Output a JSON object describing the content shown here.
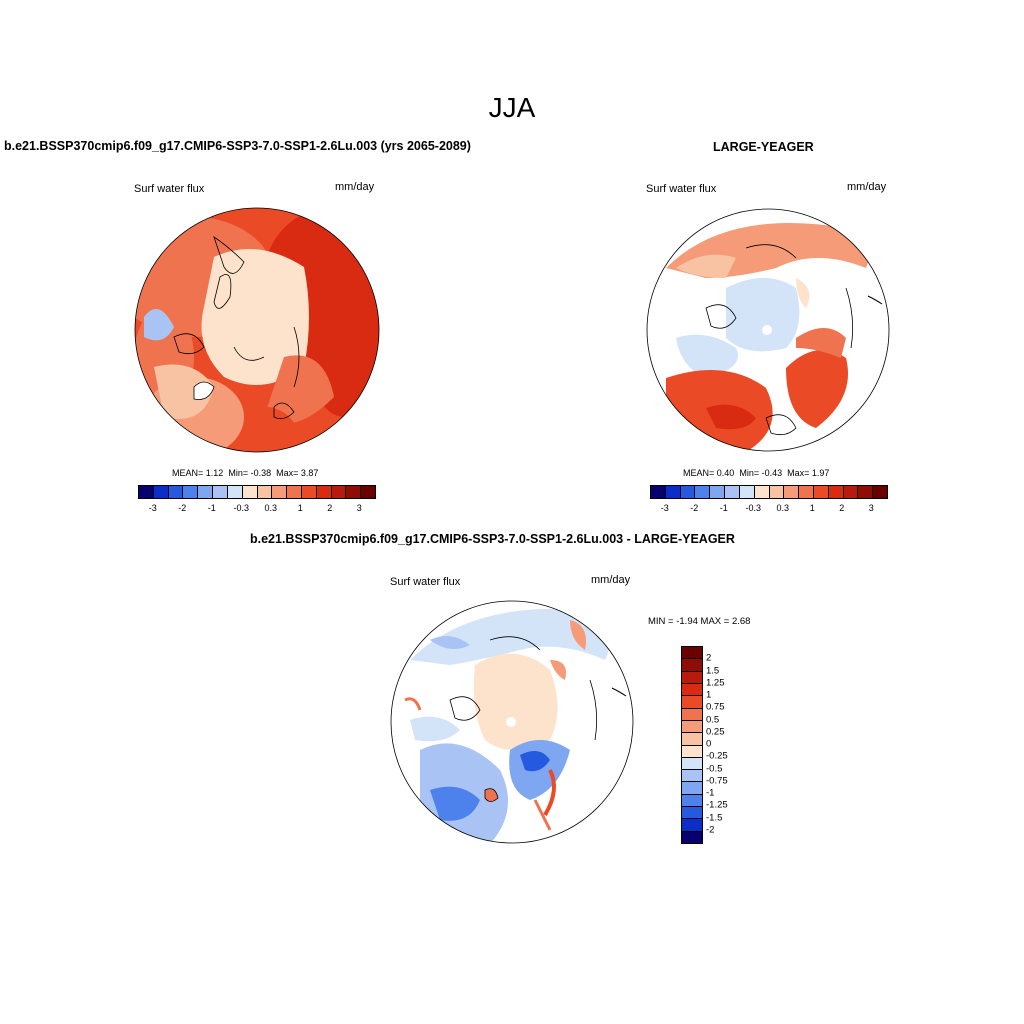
{
  "figure": {
    "season": "JJA"
  },
  "panel1": {
    "title": "b.e21.BSSP370cmip6.f09_g17.CMIP6-SSP3-7.0-SSP1-2.6Lu.003 (yrs 2065-2089)",
    "variable": "Surf water flux",
    "units": "mm/day",
    "stats": {
      "mean_label": "MEAN=",
      "mean": "1.12",
      "min_label": "Min=",
      "min": "-0.38",
      "max_label": "Max=",
      "max": "3.87"
    },
    "colorbar_ticks": [
      "-3",
      "-2",
      "-1",
      "-0.3",
      "0.3",
      "1",
      "2",
      "3"
    ]
  },
  "panel2": {
    "title": "LARGE-YEAGER",
    "variable": "Surf water flux",
    "units": "mm/day",
    "stats": {
      "mean_label": "MEAN=",
      "mean": "0.40",
      "min_label": "Min=",
      "min": "-0.43",
      "max_label": "Max=",
      "max": "1.97"
    },
    "colorbar_ticks": [
      "-3",
      "-2",
      "-1",
      "-0.3",
      "0.3",
      "1",
      "2",
      "3"
    ]
  },
  "panel3": {
    "title": "b.e21.BSSP370cmip6.f09_g17.CMIP6-SSP3-7.0-SSP1-2.6Lu.003 - LARGE-YEAGER",
    "variable": "Surf water flux",
    "units": "mm/day",
    "minmax": "MIN = -1.94 MAX =  2.68",
    "colorbar_ticks": [
      "2",
      "1.5",
      "1.25",
      "1",
      "0.75",
      "0.5",
      "0.25",
      "0",
      "-0.25",
      "-0.5",
      "-0.75",
      "-1",
      "-1.25",
      "-1.5",
      "-2"
    ]
  },
  "colors": {
    "diverging_16": [
      "#08006e",
      "#0c2ec8",
      "#2459e0",
      "#4d82ec",
      "#7fa6f0",
      "#a9c4f4",
      "#d3e4f8",
      "#fde3cc",
      "#f8c3a3",
      "#f59b78",
      "#f07350",
      "#eb4a26",
      "#d92a12",
      "#b81b0b",
      "#8f0d05",
      "#6a0000"
    ],
    "land": "#ffffff",
    "outline": "#000000"
  }
}
